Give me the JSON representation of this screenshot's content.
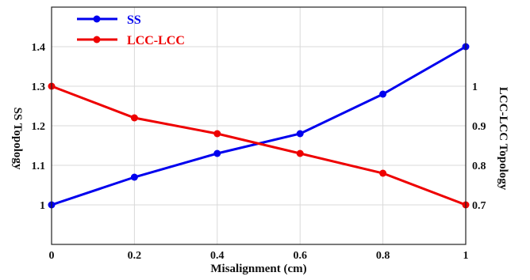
{
  "chart_data": {
    "type": "line",
    "xlabel": "Misalignment (cm)",
    "ylabel_left": "SS Topology",
    "ylabel_right": "LCC-LCC Topology",
    "x": [
      0,
      0.2,
      0.4,
      0.6,
      0.8,
      1
    ],
    "x_ticks": [
      "0",
      "0.2",
      "0.4",
      "0.6",
      "0.8",
      "1"
    ],
    "xlim": [
      0,
      1
    ],
    "left_ylim": [
      0.9,
      1.5
    ],
    "left_ticks": [
      "1",
      "1.1",
      "1.2",
      "1.3",
      "1.4"
    ],
    "right_ylim": [
      0.6,
      1.2
    ],
    "right_ticks": [
      "0.7",
      "0.8",
      "0.9",
      "1"
    ],
    "grid": true,
    "legend_position": "top-left",
    "series": [
      {
        "name": "SS",
        "axis": "left",
        "color": "#0000ee",
        "values": [
          1.0,
          1.07,
          1.13,
          1.18,
          1.28,
          1.4
        ]
      },
      {
        "name": "LCC-LCC",
        "axis": "right",
        "color": "#ee0000",
        "values": [
          1.0,
          0.92,
          0.88,
          0.83,
          0.78,
          0.7
        ]
      }
    ]
  }
}
